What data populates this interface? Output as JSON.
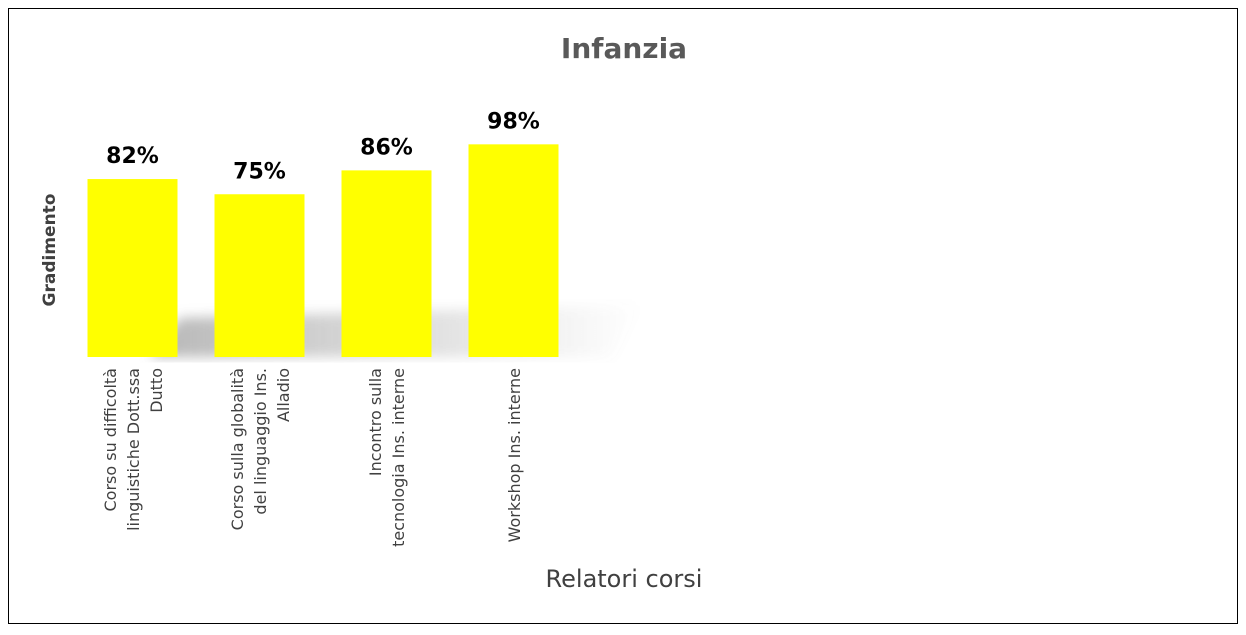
{
  "chart_data": {
    "type": "bar",
    "title": "Infanzia",
    "y_label": "Gradimento",
    "x_label": "Relatori corsi",
    "categories": [
      "Corso su difficoltà linguistiche Dott.ssa Dutto",
      "Corso sulla globalità del linguaggio Ins. Alladio",
      "Incontro sulla tecnologia Ins. interne",
      "Workshop Ins. interne"
    ],
    "values": [
      82,
      75,
      86,
      98
    ],
    "value_labels": [
      "82%",
      "75%",
      "86%",
      "98%"
    ],
    "color": "#ffff00"
  }
}
